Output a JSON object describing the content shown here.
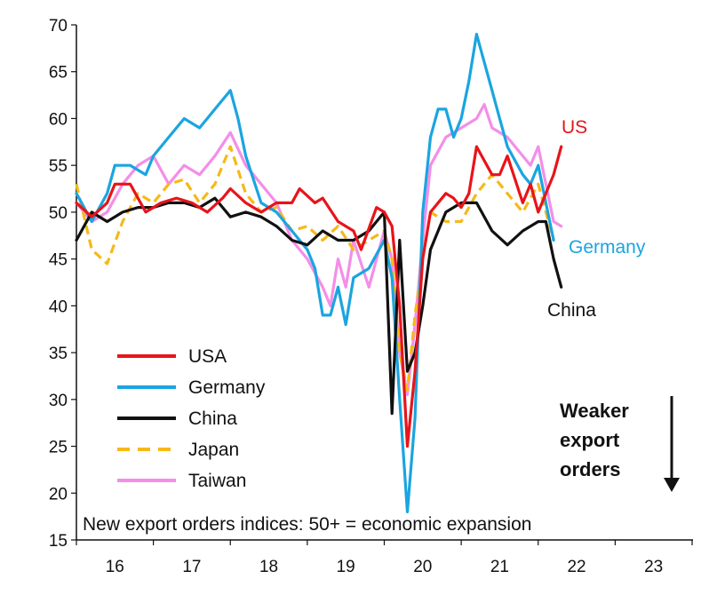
{
  "chart_data": {
    "type": "line",
    "title": "",
    "xlabel": "",
    "ylabel": "",
    "ylim": [
      15,
      70
    ],
    "xlim": [
      16,
      24
    ],
    "yticks": [
      15,
      20,
      25,
      30,
      35,
      40,
      45,
      50,
      55,
      60,
      65,
      70
    ],
    "xticks": [
      "16",
      "17",
      "18",
      "19",
      "20",
      "21",
      "22",
      "23"
    ],
    "grid": false,
    "legend_position": "bottom-left",
    "annotation": "New export orders indices: 50+ = economic expansion",
    "weaker_label": [
      "Weaker",
      "export",
      "orders"
    ],
    "series": [
      {
        "name": "USA",
        "end_label": "US",
        "color": "#e8141a",
        "dash": "solid",
        "points": [
          [
            16.0,
            51
          ],
          [
            16.2,
            49.5
          ],
          [
            16.4,
            51
          ],
          [
            16.5,
            53
          ],
          [
            16.7,
            53
          ],
          [
            16.9,
            50
          ],
          [
            17.1,
            51
          ],
          [
            17.3,
            51.5
          ],
          [
            17.5,
            51
          ],
          [
            17.7,
            50
          ],
          [
            17.9,
            51.5
          ],
          [
            18.0,
            52.5
          ],
          [
            18.2,
            51
          ],
          [
            18.4,
            50
          ],
          [
            18.6,
            51
          ],
          [
            18.8,
            51
          ],
          [
            18.9,
            52.5
          ],
          [
            19.1,
            51
          ],
          [
            19.2,
            51.5
          ],
          [
            19.4,
            49
          ],
          [
            19.6,
            48
          ],
          [
            19.7,
            46
          ],
          [
            19.9,
            50.5
          ],
          [
            20.0,
            50
          ],
          [
            20.1,
            48.5
          ],
          [
            20.2,
            40
          ],
          [
            20.3,
            25
          ],
          [
            20.4,
            33
          ],
          [
            20.5,
            45
          ],
          [
            20.6,
            50
          ],
          [
            20.8,
            52
          ],
          [
            20.9,
            51.5
          ],
          [
            21.0,
            50.5
          ],
          [
            21.1,
            52
          ],
          [
            21.2,
            57
          ],
          [
            21.4,
            54
          ],
          [
            21.5,
            54
          ],
          [
            21.6,
            56
          ],
          [
            21.8,
            51
          ],
          [
            21.9,
            53
          ],
          [
            22.0,
            50
          ],
          [
            22.1,
            52
          ],
          [
            22.2,
            54
          ],
          [
            22.3,
            57
          ]
        ]
      },
      {
        "name": "Germany",
        "end_label": "Germany",
        "color": "#1aa5e0",
        "dash": "solid",
        "points": [
          [
            16.0,
            52
          ],
          [
            16.2,
            49
          ],
          [
            16.4,
            52
          ],
          [
            16.5,
            55
          ],
          [
            16.7,
            55
          ],
          [
            16.9,
            54
          ],
          [
            17.0,
            56
          ],
          [
            17.2,
            58
          ],
          [
            17.4,
            60
          ],
          [
            17.6,
            59
          ],
          [
            17.8,
            61
          ],
          [
            18.0,
            63
          ],
          [
            18.1,
            60
          ],
          [
            18.2,
            56
          ],
          [
            18.4,
            51
          ],
          [
            18.6,
            50
          ],
          [
            18.8,
            48
          ],
          [
            19.0,
            46
          ],
          [
            19.1,
            44
          ],
          [
            19.2,
            39
          ],
          [
            19.3,
            39
          ],
          [
            19.4,
            42
          ],
          [
            19.5,
            38
          ],
          [
            19.6,
            43
          ],
          [
            19.8,
            44
          ],
          [
            20.0,
            47
          ],
          [
            20.1,
            43
          ],
          [
            20.2,
            30
          ],
          [
            20.3,
            18
          ],
          [
            20.4,
            28
          ],
          [
            20.5,
            50
          ],
          [
            20.6,
            58
          ],
          [
            20.7,
            61
          ],
          [
            20.8,
            61
          ],
          [
            20.9,
            58
          ],
          [
            21.0,
            60
          ],
          [
            21.1,
            64
          ],
          [
            21.2,
            69
          ],
          [
            21.3,
            66
          ],
          [
            21.4,
            63
          ],
          [
            21.5,
            60
          ],
          [
            21.6,
            57
          ],
          [
            21.8,
            54
          ],
          [
            21.9,
            53
          ],
          [
            22.0,
            55
          ],
          [
            22.1,
            51
          ],
          [
            22.2,
            47
          ]
        ]
      },
      {
        "name": "China",
        "end_label": "China",
        "color": "#111111",
        "dash": "solid",
        "points": [
          [
            16.0,
            47
          ],
          [
            16.2,
            50
          ],
          [
            16.4,
            49
          ],
          [
            16.6,
            50
          ],
          [
            16.8,
            50.5
          ],
          [
            17.0,
            50.5
          ],
          [
            17.2,
            51
          ],
          [
            17.4,
            51
          ],
          [
            17.6,
            50.5
          ],
          [
            17.8,
            51.5
          ],
          [
            18.0,
            49.5
          ],
          [
            18.2,
            50
          ],
          [
            18.4,
            49.5
          ],
          [
            18.6,
            48.5
          ],
          [
            18.8,
            47
          ],
          [
            19.0,
            46.5
          ],
          [
            19.2,
            48
          ],
          [
            19.4,
            47
          ],
          [
            19.6,
            47
          ],
          [
            19.8,
            48
          ],
          [
            20.0,
            50
          ],
          [
            20.1,
            28.5
          ],
          [
            20.2,
            47
          ],
          [
            20.3,
            33
          ],
          [
            20.4,
            35
          ],
          [
            20.5,
            40
          ],
          [
            20.6,
            46
          ],
          [
            20.8,
            50
          ],
          [
            21.0,
            51
          ],
          [
            21.2,
            51
          ],
          [
            21.4,
            48
          ],
          [
            21.6,
            46.5
          ],
          [
            21.8,
            48
          ],
          [
            22.0,
            49
          ],
          [
            22.1,
            49
          ],
          [
            22.2,
            45
          ],
          [
            22.3,
            42
          ]
        ]
      },
      {
        "name": "Japan",
        "end_label": "",
        "color": "#f6b919",
        "dash": "dashed",
        "points": [
          [
            16.0,
            53
          ],
          [
            16.2,
            46
          ],
          [
            16.4,
            44.5
          ],
          [
            16.6,
            49
          ],
          [
            16.8,
            52
          ],
          [
            17.0,
            51
          ],
          [
            17.2,
            53
          ],
          [
            17.4,
            53.5
          ],
          [
            17.6,
            51
          ],
          [
            17.8,
            53
          ],
          [
            18.0,
            57
          ],
          [
            18.2,
            52
          ],
          [
            18.4,
            50
          ],
          [
            18.6,
            50.5
          ],
          [
            18.8,
            48
          ],
          [
            19.0,
            48.5
          ],
          [
            19.2,
            47
          ],
          [
            19.4,
            48.5
          ],
          [
            19.6,
            46
          ],
          [
            19.8,
            47
          ],
          [
            20.0,
            48
          ],
          [
            20.1,
            45
          ],
          [
            20.2,
            35
          ],
          [
            20.3,
            31
          ],
          [
            20.4,
            39
          ],
          [
            20.5,
            45
          ],
          [
            20.6,
            50
          ],
          [
            20.8,
            49
          ],
          [
            21.0,
            49
          ],
          [
            21.2,
            52
          ],
          [
            21.4,
            54
          ],
          [
            21.6,
            52
          ],
          [
            21.8,
            50
          ],
          [
            22.0,
            53
          ],
          [
            22.1,
            50
          ],
          [
            22.2,
            47
          ]
        ]
      },
      {
        "name": "Taiwan",
        "end_label": "",
        "color": "#f48ee8",
        "dash": "solid",
        "points": [
          [
            16.0,
            51
          ],
          [
            16.2,
            49
          ],
          [
            16.4,
            50
          ],
          [
            16.6,
            53
          ],
          [
            16.8,
            55
          ],
          [
            17.0,
            56
          ],
          [
            17.2,
            53
          ],
          [
            17.4,
            55
          ],
          [
            17.6,
            54
          ],
          [
            17.8,
            56
          ],
          [
            18.0,
            58.5
          ],
          [
            18.2,
            55
          ],
          [
            18.4,
            53
          ],
          [
            18.6,
            51
          ],
          [
            18.8,
            47
          ],
          [
            19.0,
            45
          ],
          [
            19.2,
            42
          ],
          [
            19.3,
            40
          ],
          [
            19.4,
            45
          ],
          [
            19.5,
            42
          ],
          [
            19.6,
            47
          ],
          [
            19.8,
            42
          ],
          [
            20.0,
            48
          ],
          [
            20.1,
            45
          ],
          [
            20.2,
            35
          ],
          [
            20.3,
            30.5
          ],
          [
            20.4,
            38
          ],
          [
            20.5,
            47
          ],
          [
            20.6,
            55
          ],
          [
            20.8,
            58
          ],
          [
            21.0,
            59
          ],
          [
            21.2,
            60
          ],
          [
            21.3,
            61.5
          ],
          [
            21.4,
            59
          ],
          [
            21.6,
            58
          ],
          [
            21.8,
            56
          ],
          [
            21.9,
            55
          ],
          [
            22.0,
            57
          ],
          [
            22.1,
            53
          ],
          [
            22.2,
            49
          ],
          [
            22.3,
            48.5
          ]
        ]
      }
    ]
  }
}
